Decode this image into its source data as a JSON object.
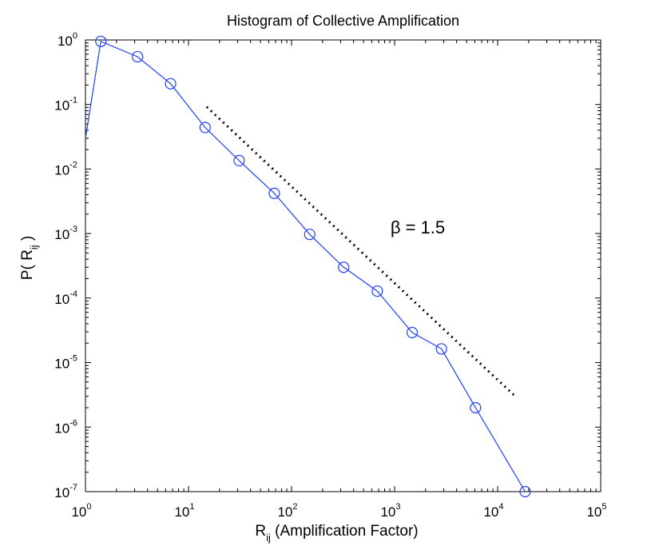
{
  "chart_data": {
    "type": "line",
    "title": "Histogram of Collective Amplification",
    "xscale": "log",
    "yscale": "log",
    "xlim": [
      1,
      100000
    ],
    "ylim": [
      1e-07,
      1
    ],
    "x_ticks": [
      {
        "base": "10",
        "exp": "0",
        "value": 1
      },
      {
        "base": "10",
        "exp": "1",
        "value": 10
      },
      {
        "base": "10",
        "exp": "2",
        "value": 100
      },
      {
        "base": "10",
        "exp": "3",
        "value": 1000
      },
      {
        "base": "10",
        "exp": "4",
        "value": 10000
      },
      {
        "base": "10",
        "exp": "5",
        "value": 100000
      }
    ],
    "y_ticks": [
      {
        "base": "10",
        "exp": "0",
        "value": 1
      },
      {
        "base": "10",
        "exp": "-1",
        "value": 0.1
      },
      {
        "base": "10",
        "exp": "-2",
        "value": 0.01
      },
      {
        "base": "10",
        "exp": "-3",
        "value": 0.001
      },
      {
        "base": "10",
        "exp": "-4",
        "value": 0.0001
      },
      {
        "base": "10",
        "exp": "-5",
        "value": 1e-05
      },
      {
        "base": "10",
        "exp": "-6",
        "value": 1e-06
      },
      {
        "base": "10",
        "exp": "-7",
        "value": 1e-07
      }
    ],
    "xlabel": {
      "main": "R",
      "sub": "ij",
      "rest": " (Amplification Factor)"
    },
    "ylabel": {
      "pre": "P( R",
      "sub": "ij",
      "post": " )"
    },
    "series": [
      {
        "name": "P(R_ij)",
        "color": "#1f3fff",
        "marker": "circle",
        "line_start": {
          "x": 1.0,
          "y": 0.03
        },
        "x": [
          1.41,
          3.2,
          6.7,
          14.5,
          31,
          68,
          150,
          320,
          680,
          1480,
          2850,
          6100,
          18500
        ],
        "y": [
          0.95,
          0.55,
          0.21,
          0.044,
          0.0135,
          0.0042,
          0.00097,
          0.0003,
          0.000128,
          2.92e-05,
          1.63e-05,
          2e-06,
          1e-07
        ]
      }
    ],
    "reference_line": {
      "style": "dotted",
      "color": "#000000",
      "x_start": 15,
      "x_end": 14500,
      "y_start": 0.092,
      "y_end": 3.1e-06
    },
    "annotation": {
      "text": "β = 1.5",
      "x": 2000,
      "y": 0.001
    }
  }
}
